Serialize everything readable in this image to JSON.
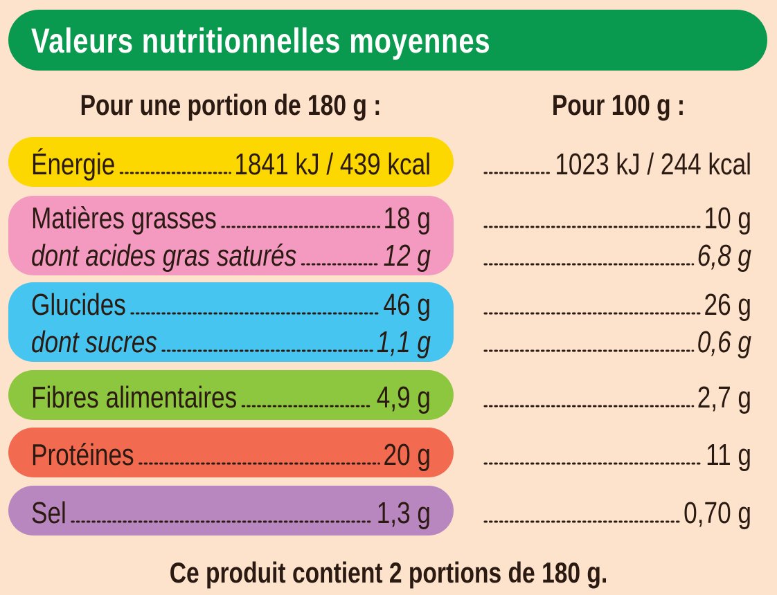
{
  "header": {
    "title": "Valeurs nutritionnelles moyennes"
  },
  "columns": [
    "Pour une portion de 180 g :",
    "Pour 100 g :"
  ],
  "groups": [
    {
      "color": "#fdd800",
      "rows": [
        {
          "name": "Énergie",
          "portion": "1841 kJ / 439 kcal",
          "per100": "1023 kJ / 244 kcal"
        }
      ]
    },
    {
      "color": "#f49ac1",
      "rows": [
        {
          "name": "Matières grasses",
          "portion": "18 g",
          "per100": "10 g"
        },
        {
          "name": "dont acides gras saturés",
          "portion": "12 g",
          "per100": "6,8 g"
        }
      ]
    },
    {
      "color": "#45c5f0",
      "rows": [
        {
          "name": "Glucides",
          "portion": "46 g",
          "per100": "26 g"
        },
        {
          "name": "dont sucres",
          "portion": "1,1 g",
          "per100": "0,6 g"
        }
      ]
    },
    {
      "color": "#8dc63f",
      "rows": [
        {
          "name": "Fibres alimentaires",
          "portion": "4,9 g",
          "per100": "2,7 g"
        }
      ]
    },
    {
      "color": "#f26a50",
      "rows": [
        {
          "name": "Protéines",
          "portion": "20 g",
          "per100": "11 g"
        }
      ]
    },
    {
      "color": "#b987bf",
      "rows": [
        {
          "name": "Sel",
          "portion": "1,3 g",
          "per100": "0,70 g"
        }
      ]
    }
  ],
  "footer": "Ce produit contient 2 portions de 180 g."
}
